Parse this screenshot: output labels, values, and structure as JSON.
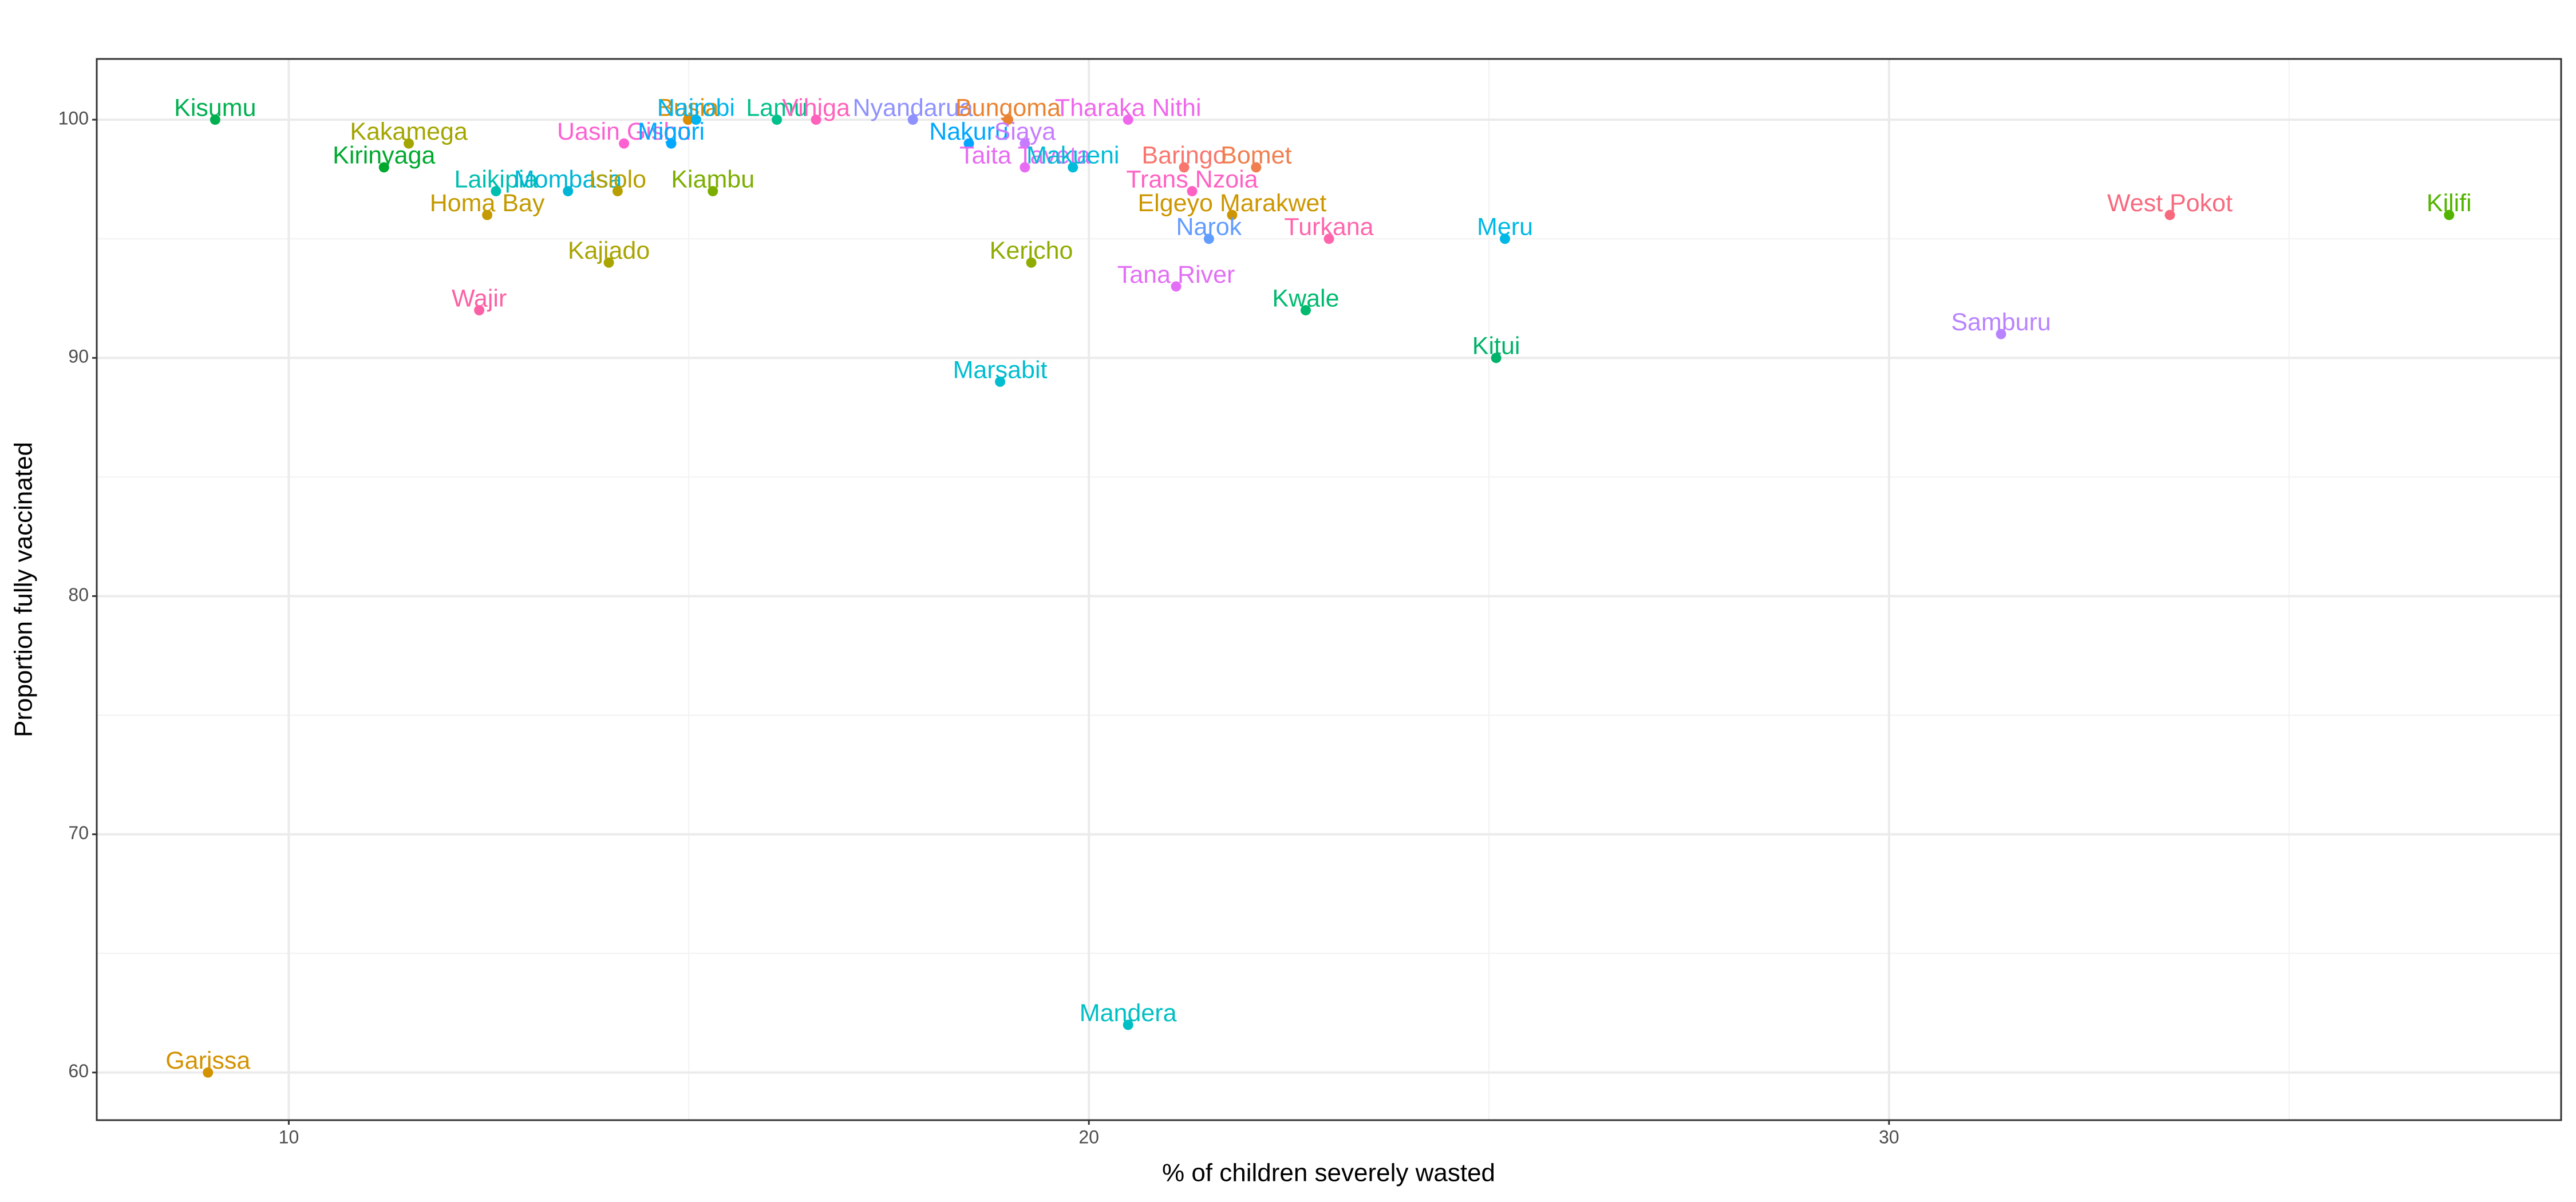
{
  "chart_data": {
    "type": "scatter",
    "x_label": "% of children severely wasted",
    "y_label": "Proportion fully vaccinated",
    "xlim": [
      7.6,
      38.4
    ],
    "ylim": [
      58.0,
      102.55
    ],
    "xticks": [
      10,
      20,
      30
    ],
    "yticks": [
      60,
      70,
      80,
      90,
      100
    ],
    "minor_xticks": [
      15,
      25,
      35
    ],
    "minor_yticks": [
      65,
      75,
      85,
      95
    ],
    "grid": true,
    "points": [
      {
        "label": "Kisumu",
        "x": 9.08,
        "y": 100,
        "color": "#00b050"
      },
      {
        "label": "Kakamega",
        "x": 11.5,
        "y": 99,
        "color": "#a3a500"
      },
      {
        "label": "Kirinyaga",
        "x": 11.19,
        "y": 98,
        "color": "#00a82e"
      },
      {
        "label": "Laikipia",
        "x": 12.59,
        "y": 97,
        "color": "#00bfb0"
      },
      {
        "label": "Homa Bay",
        "x": 12.48,
        "y": 96,
        "color": "#c49a00"
      },
      {
        "label": "Wajir",
        "x": 12.38,
        "y": 92,
        "color": "#fc61a5"
      },
      {
        "label": "Garissa",
        "x": 8.99,
        "y": 60,
        "color": "#d39200"
      },
      {
        "label": "Mombasa",
        "x": 13.49,
        "y": 97,
        "color": "#00b5d6"
      },
      {
        "label": "Isiolo",
        "x": 14.11,
        "y": 97,
        "color": "#b79f00"
      },
      {
        "label": "Kajiado",
        "x": 14.0,
        "y": 94,
        "color": "#a9a400"
      },
      {
        "label": "Uasin Gishu",
        "x": 14.19,
        "y": 99,
        "color": "#fd61d1"
      },
      {
        "label": "Migori",
        "x": 14.78,
        "y": 99,
        "color": "#00a9ff"
      },
      {
        "label": "Busia",
        "x": 14.99,
        "y": 100,
        "color": "#de8c00"
      },
      {
        "label": "Nairobi",
        "x": 15.09,
        "y": 100,
        "color": "#00b4ef"
      },
      {
        "label": "Kiambu",
        "x": 15.3,
        "y": 97,
        "color": "#7cae00"
      },
      {
        "label": "Lamu",
        "x": 16.1,
        "y": 100,
        "color": "#00c08b"
      },
      {
        "label": "Vihiga",
        "x": 16.59,
        "y": 100,
        "color": "#ff62bc"
      },
      {
        "label": "Nyandarua",
        "x": 17.8,
        "y": 100,
        "color": "#8f91ff"
      },
      {
        "label": "Bungoma",
        "x": 18.99,
        "y": 100,
        "color": "#ea8331"
      },
      {
        "label": "Nakuru",
        "x": 18.5,
        "y": 99,
        "color": "#00a6ff"
      },
      {
        "label": "Siaya",
        "x": 19.2,
        "y": 99,
        "color": "#c77cff"
      },
      {
        "label": "Taita Taveta",
        "x": 19.2,
        "y": 98,
        "color": "#e76bf3"
      },
      {
        "label": "Makueni",
        "x": 19.8,
        "y": 98,
        "color": "#00bcd8"
      },
      {
        "label": "Tharaka Nithi",
        "x": 20.49,
        "y": 100,
        "color": "#ef67eb"
      },
      {
        "label": "Baringo",
        "x": 21.19,
        "y": 98,
        "color": "#f8766d"
      },
      {
        "label": "Bomet",
        "x": 22.09,
        "y": 98,
        "color": "#f17e4e"
      },
      {
        "label": "Trans Nzoia",
        "x": 21.29,
        "y": 97,
        "color": "#ff61c3"
      },
      {
        "label": "Elgeyo Marakwet",
        "x": 21.79,
        "y": 96,
        "color": "#cd9600"
      },
      {
        "label": "Narok",
        "x": 21.5,
        "y": 95,
        "color": "#619cff"
      },
      {
        "label": "Turkana",
        "x": 23.0,
        "y": 95,
        "color": "#ff65ac"
      },
      {
        "label": "Kericho",
        "x": 19.28,
        "y": 94,
        "color": "#8fac00"
      },
      {
        "label": "Tana River",
        "x": 21.09,
        "y": 93,
        "color": "#e36ef6"
      },
      {
        "label": "Kwale",
        "x": 22.71,
        "y": 92,
        "color": "#00ba6f"
      },
      {
        "label": "Marsabit",
        "x": 18.89,
        "y": 89,
        "color": "#00bdd0"
      },
      {
        "label": "Mandera",
        "x": 20.49,
        "y": 62,
        "color": "#00bfc4"
      },
      {
        "label": "Meru",
        "x": 25.2,
        "y": 95,
        "color": "#00b8e5"
      },
      {
        "label": "Kitui",
        "x": 25.09,
        "y": 90,
        "color": "#00b36a"
      },
      {
        "label": "Samburu",
        "x": 31.4,
        "y": 91,
        "color": "#b983ff"
      },
      {
        "label": "West Pokot",
        "x": 33.51,
        "y": 96,
        "color": "#f8697e"
      },
      {
        "label": "Kilifi",
        "x": 37.0,
        "y": 96,
        "color": "#53b400"
      }
    ]
  }
}
